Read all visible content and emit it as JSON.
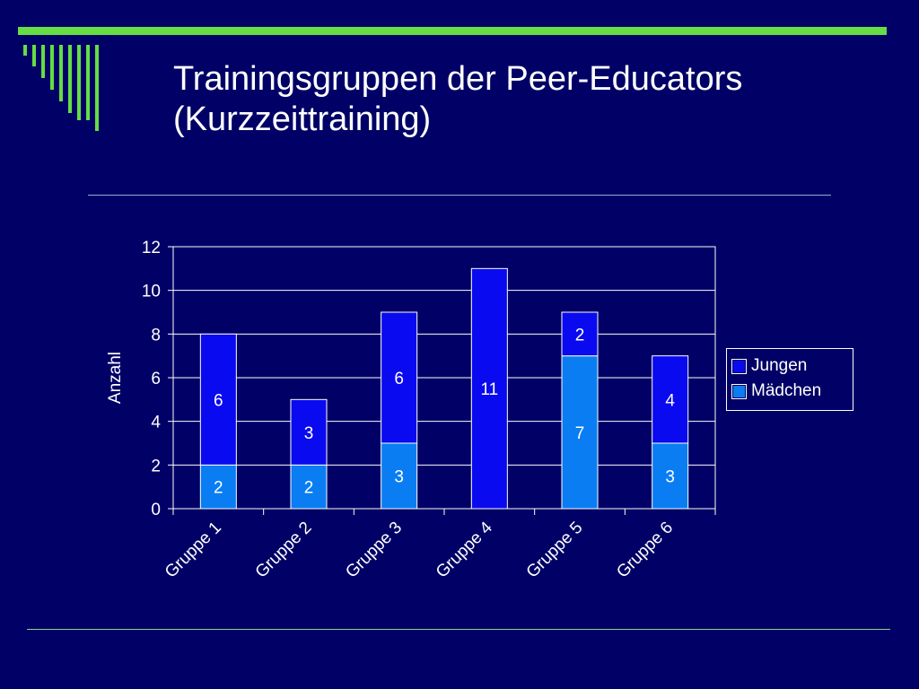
{
  "slide": {
    "title_line1": "Trainingsgruppen der Peer-Educators",
    "title_line2": "(Kurzzeittraining)",
    "colors": {
      "background": "#000066",
      "accent": "#66dd44",
      "text": "#ffffff"
    }
  },
  "chart_data": {
    "type": "bar",
    "stacked": true,
    "categories": [
      "Gruppe 1",
      "Gruppe 2",
      "Gruppe 3",
      "Gruppe 4",
      "Gruppe 5",
      "Gruppe 6"
    ],
    "series": [
      {
        "name": "Mädchen",
        "color": "#0a7df2",
        "values": [
          2,
          2,
          3,
          0,
          7,
          3
        ]
      },
      {
        "name": "Jungen",
        "color": "#0a0af0",
        "values": [
          6,
          3,
          6,
          11,
          2,
          4
        ]
      }
    ],
    "title": "",
    "xlabel": "",
    "ylabel": "Anzahl",
    "ylim": [
      0,
      12
    ],
    "yticks": [
      0,
      2,
      4,
      6,
      8,
      10,
      12
    ],
    "grid": true,
    "legend": "right",
    "legend_order": [
      "Jungen",
      "Mädchen"
    ]
  }
}
